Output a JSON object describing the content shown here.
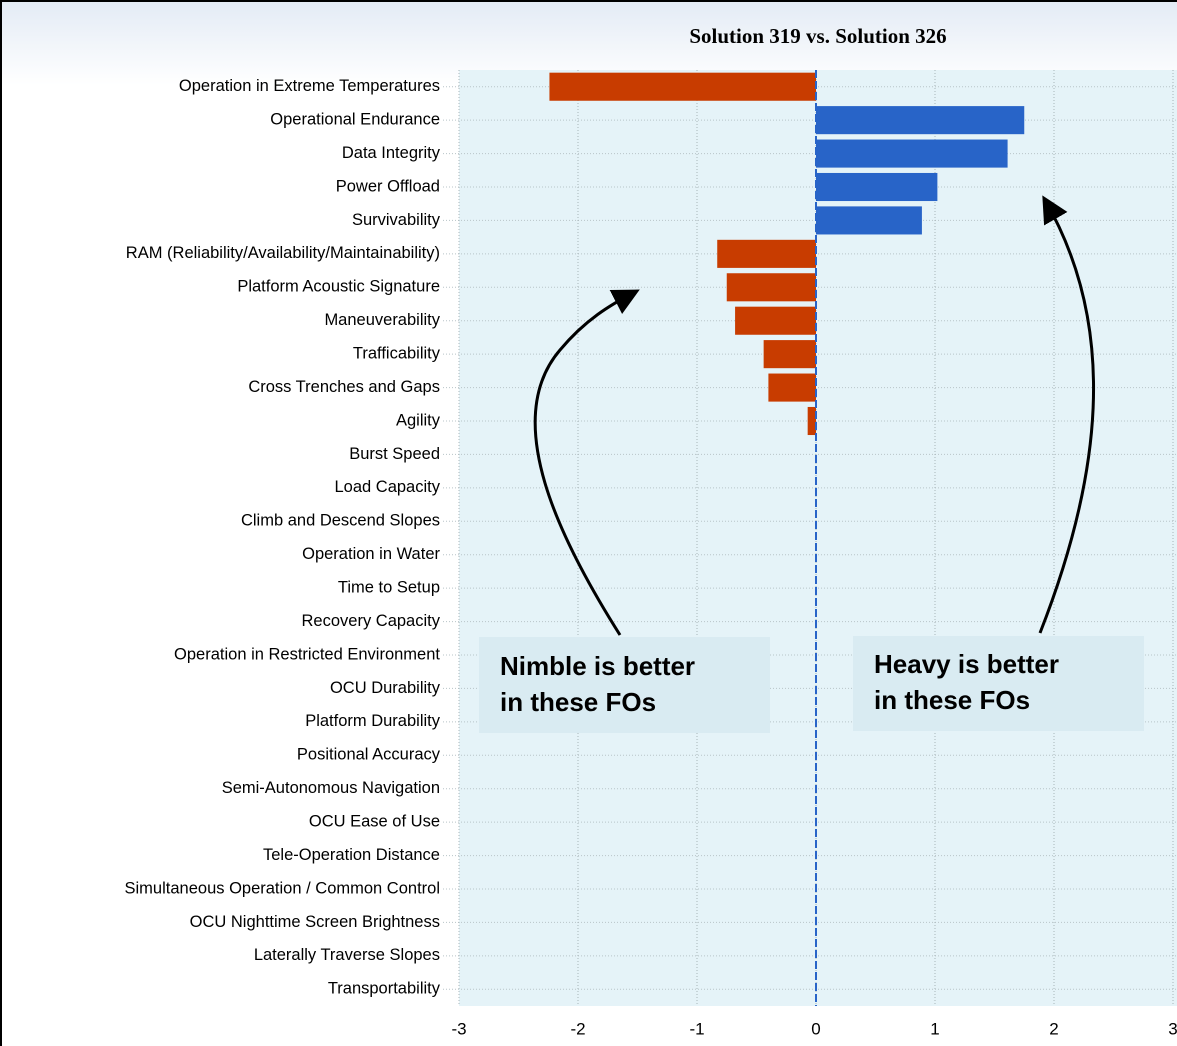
{
  "chart_data": {
    "type": "barh",
    "title": "Solution 319 vs. Solution 326",
    "categories": [
      "Operation in Extreme Temperatures",
      "Operational Endurance",
      "Data Integrity",
      "Power Offload",
      "Survivability",
      "RAM  (Reliability/Availability/Maintainability)",
      "Platform Acoustic Signature",
      "Maneuverability",
      "Trafficability",
      "Cross Trenches and Gaps",
      "Agility",
      "Burst Speed",
      "Load Capacity",
      "Climb and Descend Slopes",
      "Operation in Water",
      "Time to Setup",
      "Recovery Capacity",
      "Operation in Restricted Environment",
      "OCU Durability",
      "Platform Durability",
      "Positional Accuracy",
      "Semi-Autonomous Navigation",
      "OCU Ease of Use",
      "Tele-Operation Distance",
      "Simultaneous Operation  /  Common Control",
      "OCU Nighttime Screen Brightness",
      "Laterally Traverse Slopes",
      "Transportability"
    ],
    "values": [
      -2.24,
      1.75,
      1.61,
      1.02,
      0.89,
      -0.83,
      -0.75,
      -0.68,
      -0.44,
      -0.4,
      -0.07,
      0,
      0,
      0,
      0,
      0,
      0,
      0,
      0,
      0,
      0,
      0,
      0,
      0,
      0,
      0,
      0,
      0
    ],
    "positive_color": "#2864c8",
    "negative_color": "#c83c00",
    "xlim": [
      -3,
      3
    ],
    "xticks": [
      -3,
      -2,
      -1,
      0,
      1,
      2,
      3
    ],
    "grid": true,
    "annotations": [
      [
        "Nimble is better",
        "in these FOs"
      ],
      [
        "Heavy is better",
        "in these FOs"
      ]
    ]
  }
}
